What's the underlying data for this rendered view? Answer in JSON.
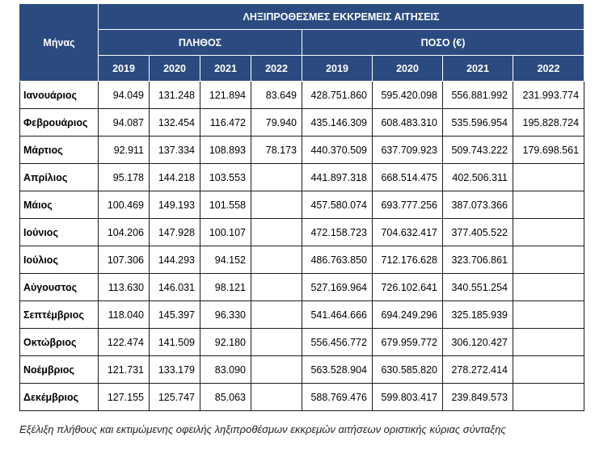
{
  "table": {
    "month_header": "Μήνας",
    "title": "ΛΗΞΙΠΡΟΘΕΣΜΕΣ ΕΚΚΡΕΜΕΙΣ ΑΙΤΗΣΕΙΣ",
    "group_count": "ΠΛΗΘΟΣ",
    "group_amount": "ΠΟΣΟ (€)",
    "years": [
      "2019",
      "2020",
      "2021",
      "2022"
    ],
    "rows": [
      {
        "month": "Ιανουάριος",
        "count": [
          "94.049",
          "131.248",
          "121.894",
          "83.649"
        ],
        "amount": [
          "428.751.860",
          "595.420.098",
          "556.881.992",
          "231.993.774"
        ]
      },
      {
        "month": "Φεβρουάριος",
        "count": [
          "94.087",
          "132.454",
          "116.472",
          "79.940"
        ],
        "amount": [
          "435.146.309",
          "608.483.310",
          "535.596.954",
          "195.828.724"
        ]
      },
      {
        "month": "Μάρτιος",
        "count": [
          "92.911",
          "137.334",
          "108.893",
          "78.173"
        ],
        "amount": [
          "440.370.509",
          "637.709.923",
          "509.743.222",
          "179.698.561"
        ]
      },
      {
        "month": "Απρίλιος",
        "count": [
          "95.178",
          "144.218",
          "103.553",
          ""
        ],
        "amount": [
          "441.897.318",
          "668.514.475",
          "402.506.311",
          ""
        ]
      },
      {
        "month": "Μάιος",
        "count": [
          "100.469",
          "149.193",
          "101.558",
          ""
        ],
        "amount": [
          "457.580.074",
          "693.777.256",
          "387.073.366",
          ""
        ]
      },
      {
        "month": "Ιούνιος",
        "count": [
          "104.206",
          "147.928",
          "100.107",
          ""
        ],
        "amount": [
          "472.158.723",
          "704.632.417",
          "377.405.522",
          ""
        ]
      },
      {
        "month": "Ιούλιος",
        "count": [
          "107.306",
          "144.293",
          "94.152",
          ""
        ],
        "amount": [
          "486.763.850",
          "712.176.628",
          "323.706.861",
          ""
        ]
      },
      {
        "month": "Αύγουστος",
        "count": [
          "113.630",
          "146.031",
          "98.121",
          ""
        ],
        "amount": [
          "527.169.964",
          "726.102.641",
          "340.551.254",
          ""
        ]
      },
      {
        "month": "Σεπτέμβριος",
        "count": [
          "118.040",
          "145.397",
          "96.330",
          ""
        ],
        "amount": [
          "541.464.666",
          "694.249.296",
          "325.185.939",
          ""
        ]
      },
      {
        "month": "Οκτώβριος",
        "count": [
          "122.474",
          "141.509",
          "92.180",
          ""
        ],
        "amount": [
          "556.456.772",
          "679.959.772",
          "306.120.427",
          ""
        ]
      },
      {
        "month": "Νοέμβριος",
        "count": [
          "121.731",
          "133.179",
          "83.090",
          ""
        ],
        "amount": [
          "563.528.904",
          "630.585.820",
          "278.272.414",
          ""
        ]
      },
      {
        "month": "Δεκέμβριος",
        "count": [
          "127.155",
          "125.747",
          "85.063",
          ""
        ],
        "amount": [
          "588.769.476",
          "599.803.417",
          "239.849.573",
          ""
        ]
      }
    ]
  },
  "caption": "Εξέλιξη πλήθους και εκτιμώμενης οφειλής ληξιπροθέσμων εκκρεμών αιτήσεων οριστικής κύριας σύνταξης",
  "colors": {
    "header_bg": "#2b4b80",
    "header_text": "#ffffff"
  }
}
